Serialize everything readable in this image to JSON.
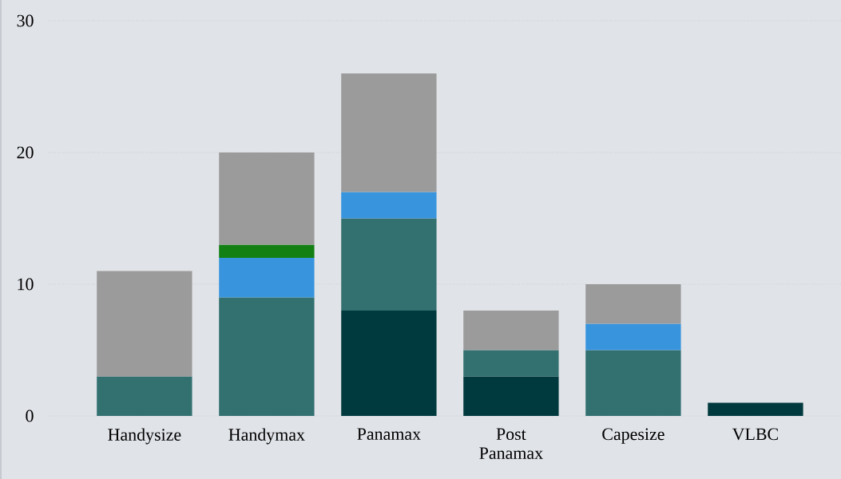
{
  "chart_data": {
    "type": "bar",
    "stacked": true,
    "categories": [
      "Handysize",
      "Handymax",
      "Panamax",
      "Post Panamax",
      "Capesize",
      "VLBC"
    ],
    "series": [
      {
        "color": "#003a3e",
        "values": [
          null,
          null,
          8,
          3,
          null,
          1
        ]
      },
      {
        "color": "#337070",
        "values": [
          3,
          9,
          7,
          2,
          5,
          null
        ]
      },
      {
        "color": "#3895dd",
        "values": [
          null,
          3,
          2,
          null,
          2,
          null
        ]
      },
      {
        "color": "#138013",
        "values": [
          null,
          1,
          null,
          null,
          null,
          null
        ]
      },
      {
        "color": "#9b9b9b",
        "values": [
          8,
          7,
          9,
          3,
          3,
          null
        ]
      }
    ],
    "ylim": [
      0,
      30
    ],
    "yticks": [
      0,
      10,
      20,
      30
    ],
    "grid": "y"
  }
}
